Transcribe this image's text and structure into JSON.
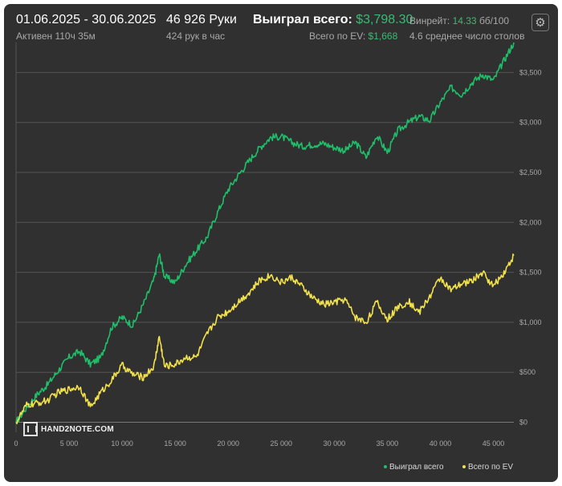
{
  "header": {
    "date_range": "01.06.2025 - 30.06.2025",
    "active_time": "Активен 110ч 35м",
    "hands_count": "46 926 Руки",
    "hands_per_hour": "424 рук в час",
    "won_total_label": "Выиграл всего:",
    "won_total_value": "$3,798.30",
    "ev_total_label": "Всего по EV:",
    "ev_total_value": "$1,668",
    "winrate_label": "Винрейт:",
    "winrate_value": "14.33",
    "winrate_unit": "бб/100",
    "avg_tables": "4.6 среднее число столов"
  },
  "logo": {
    "text": "HAND2NOTE.COM"
  },
  "icons": {
    "settings": "gear-icon"
  },
  "colors": {
    "background": "#303030",
    "won": "#1fbf6a",
    "ev": "#f2e14a",
    "grid": "#555555",
    "accent_text": "#3dba72"
  },
  "chart_data": {
    "type": "line",
    "xlim": [
      0,
      46926
    ],
    "ylim": [
      -100,
      3800
    ],
    "x_ticks": [
      0,
      5000,
      10000,
      15000,
      20000,
      25000,
      30000,
      35000,
      40000,
      45000
    ],
    "x_tick_labels": [
      "0",
      "5 000",
      "10 000",
      "15 000",
      "20 000",
      "25 000",
      "30 000",
      "35 000",
      "40 000",
      "45 000"
    ],
    "y_ticks": [
      0,
      500,
      1000,
      1500,
      2000,
      2500,
      3000,
      3500
    ],
    "y_tick_labels": [
      "$0",
      "$500",
      "$1,000",
      "$1,500",
      "$2,000",
      "$2,500",
      "$3,000",
      "$3,500"
    ],
    "grid": true,
    "legend_position": "bottom-right",
    "series": [
      {
        "name": "Выиграл всего",
        "x": [
          0,
          1000,
          2000,
          3000,
          4000,
          5000,
          6000,
          7000,
          8000,
          9000,
          10000,
          11000,
          12000,
          13000,
          13500,
          14000,
          15000,
          16000,
          17000,
          18000,
          19000,
          20000,
          21000,
          22000,
          23000,
          24000,
          25000,
          26000,
          27000,
          28000,
          29000,
          30000,
          31000,
          32000,
          33000,
          34000,
          35000,
          36000,
          37000,
          38000,
          39000,
          40000,
          41000,
          42000,
          43000,
          44000,
          45000,
          46000,
          46926
        ],
        "y": [
          0,
          150,
          280,
          380,
          520,
          650,
          710,
          580,
          650,
          950,
          1050,
          970,
          1180,
          1430,
          1680,
          1460,
          1400,
          1580,
          1720,
          1850,
          2100,
          2330,
          2480,
          2620,
          2750,
          2850,
          2860,
          2800,
          2760,
          2780,
          2790,
          2750,
          2720,
          2800,
          2650,
          2870,
          2700,
          2920,
          3000,
          3060,
          3020,
          3200,
          3350,
          3280,
          3400,
          3480,
          3420,
          3620,
          3800
        ]
      },
      {
        "name": "Всего по EV",
        "x": [
          0,
          1000,
          2000,
          3000,
          4000,
          5000,
          6000,
          7000,
          8000,
          9000,
          10000,
          11000,
          12000,
          13000,
          13500,
          14000,
          15000,
          16000,
          17000,
          18000,
          19000,
          20000,
          21000,
          22000,
          23000,
          24000,
          25000,
          26000,
          27000,
          28000,
          29000,
          30000,
          31000,
          32000,
          33000,
          34000,
          35000,
          36000,
          37000,
          38000,
          39000,
          40000,
          41000,
          42000,
          43000,
          44000,
          45000,
          46000,
          46926
        ],
        "y": [
          0,
          170,
          190,
          220,
          300,
          330,
          360,
          150,
          300,
          420,
          570,
          480,
          450,
          560,
          860,
          560,
          580,
          650,
          650,
          880,
          1050,
          1110,
          1210,
          1300,
          1420,
          1470,
          1400,
          1450,
          1350,
          1240,
          1180,
          1200,
          1230,
          1050,
          1000,
          1200,
          1030,
          1150,
          1210,
          1100,
          1260,
          1450,
          1320,
          1380,
          1420,
          1500,
          1360,
          1500,
          1668
        ]
      }
    ]
  }
}
